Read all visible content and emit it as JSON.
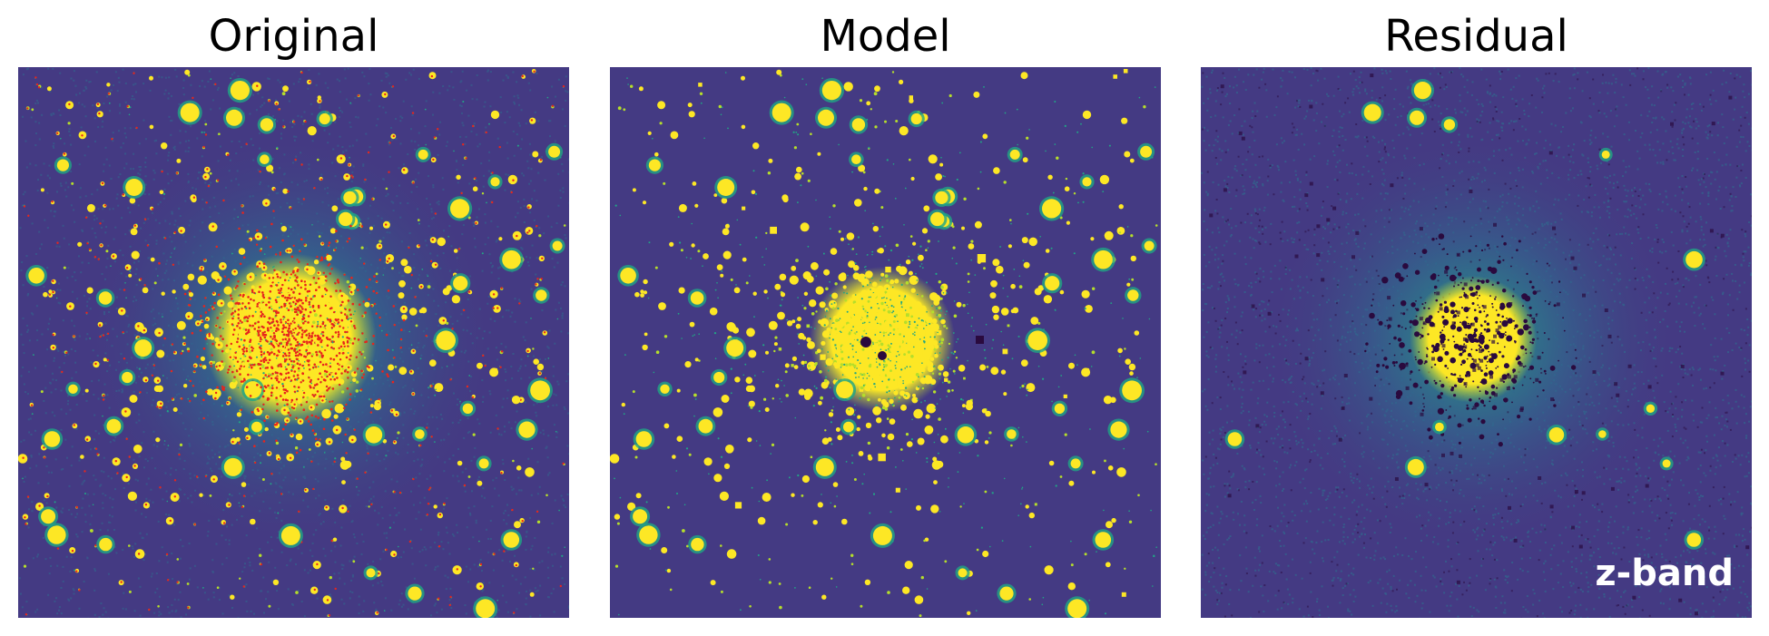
{
  "panels": [
    {
      "title": "Original"
    },
    {
      "title": "Model"
    },
    {
      "title": "Residual"
    }
  ],
  "band_label": "z-band",
  "colors": {
    "background": "#443a83",
    "low": "#31688e",
    "mid": "#21a685",
    "bright": "#b5de2b",
    "saturated": "#fde725",
    "negative": "#2a0a3e",
    "detections": "#e8241c"
  },
  "image_kind": "star cluster photometry: original image, PSF model, residual"
}
